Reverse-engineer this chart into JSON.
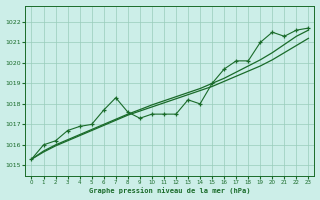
{
  "bg_color": "#cceee8",
  "grid_color": "#99ccbb",
  "line_color": "#1a6b2a",
  "xlim": [
    -0.5,
    23.5
  ],
  "ylim": [
    1014.5,
    1022.8
  ],
  "yticks": [
    1015,
    1016,
    1017,
    1018,
    1019,
    1020,
    1021,
    1022
  ],
  "xticks": [
    0,
    1,
    2,
    3,
    4,
    5,
    6,
    7,
    8,
    9,
    10,
    11,
    12,
    13,
    14,
    15,
    16,
    17,
    18,
    19,
    20,
    21,
    22,
    23
  ],
  "xlabel": "Graphe pression niveau de la mer (hPa)",
  "smooth_line1": [
    1015.3,
    1015.65,
    1015.95,
    1016.2,
    1016.45,
    1016.7,
    1016.95,
    1017.2,
    1017.45,
    1017.65,
    1017.85,
    1018.05,
    1018.25,
    1018.45,
    1018.65,
    1018.85,
    1019.1,
    1019.35,
    1019.6,
    1019.85,
    1020.15,
    1020.5,
    1020.85,
    1021.2
  ],
  "smooth_line2": [
    1015.3,
    1015.7,
    1016.0,
    1016.25,
    1016.5,
    1016.75,
    1017.0,
    1017.25,
    1017.5,
    1017.72,
    1017.95,
    1018.15,
    1018.35,
    1018.55,
    1018.75,
    1019.0,
    1019.25,
    1019.55,
    1019.85,
    1020.15,
    1020.5,
    1020.9,
    1021.3,
    1021.6
  ],
  "data_line": [
    1015.3,
    1016.0,
    1016.2,
    1016.7,
    1016.9,
    1017.0,
    1017.7,
    1018.3,
    1017.6,
    1017.3,
    1017.5,
    1017.5,
    1017.5,
    1018.2,
    1018.0,
    1019.0,
    1019.7,
    1020.1,
    1020.1,
    1021.0,
    1021.5,
    1021.3,
    1021.6,
    1021.7
  ]
}
